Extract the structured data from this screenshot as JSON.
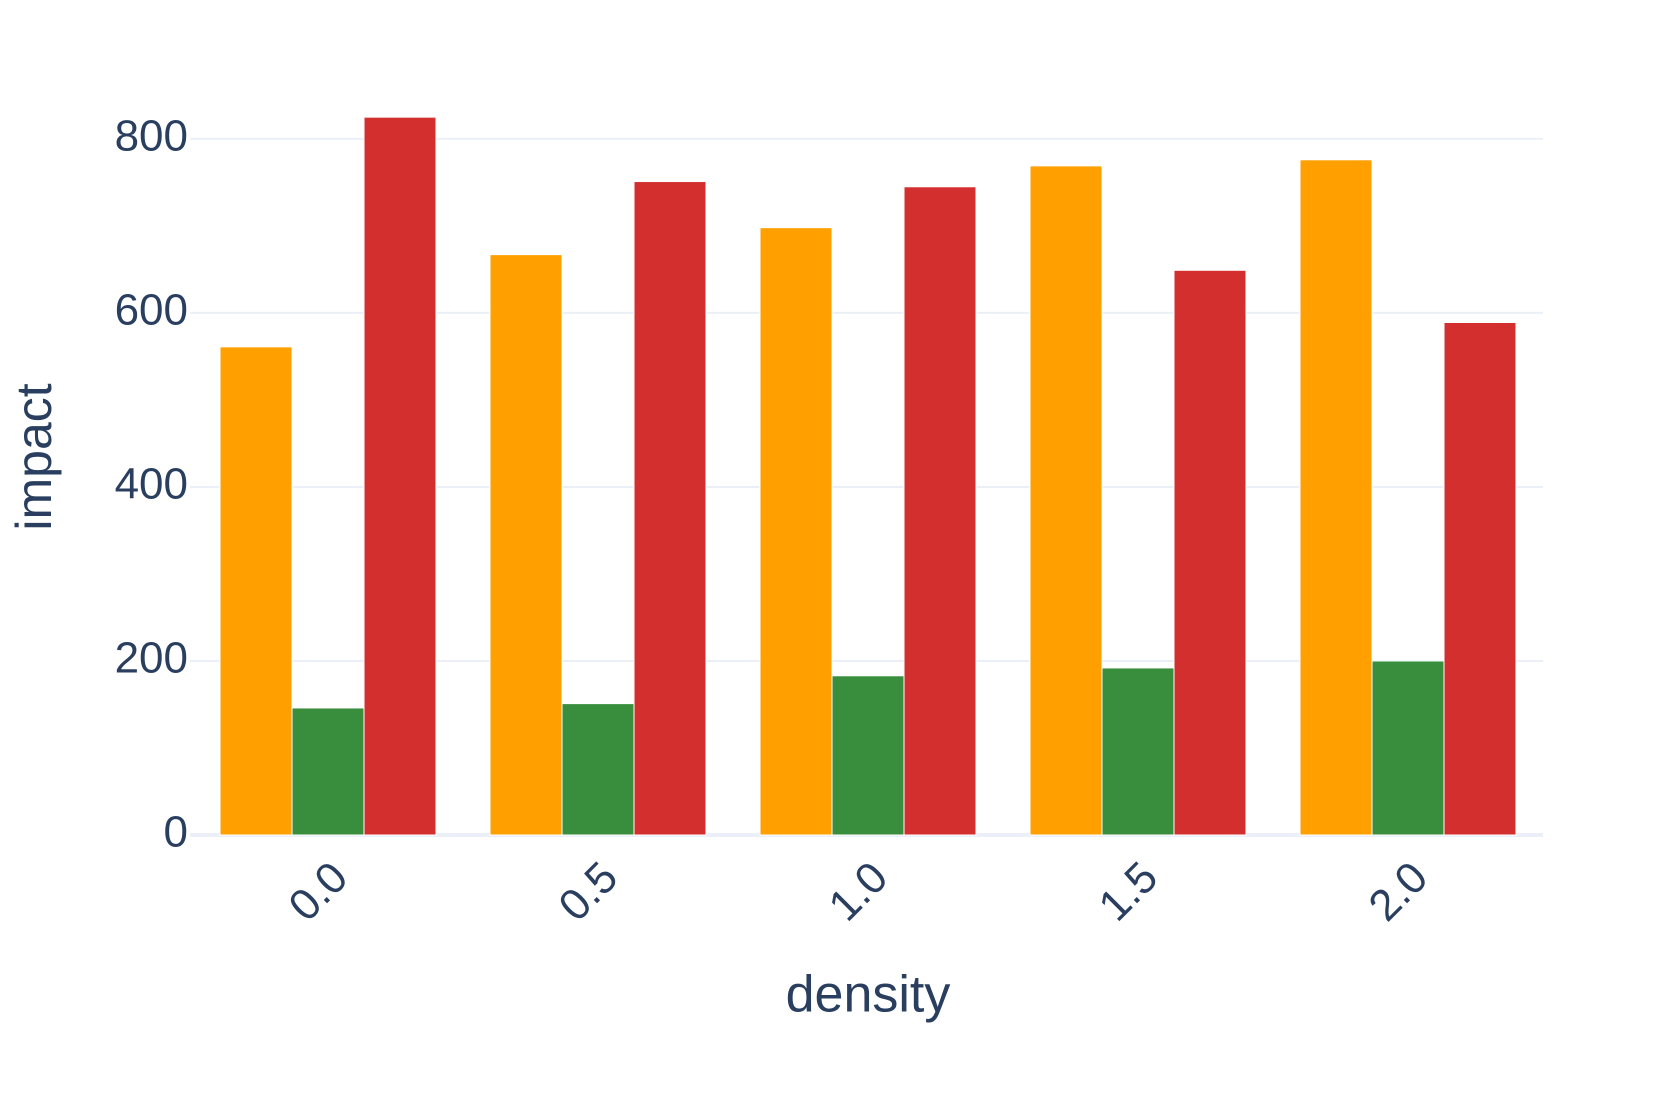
{
  "chart_data": {
    "type": "bar",
    "x_label": "density",
    "y_label": "impact",
    "categories": [
      "0.0",
      "0.5",
      "1.0",
      "1.5",
      "2.0"
    ],
    "series": [
      {
        "color": "#ffa000",
        "values": [
          561,
          667,
          698,
          769,
          776
        ]
      },
      {
        "color": "#388e3c",
        "values": [
          146,
          151,
          183,
          192,
          200
        ]
      },
      {
        "color": "#d32f2f",
        "values": [
          825,
          751,
          745,
          649,
          589
        ]
      }
    ],
    "ylim": [
      0,
      870
    ],
    "yticks": [
      0,
      200,
      400,
      600,
      800
    ],
    "grid": true
  }
}
